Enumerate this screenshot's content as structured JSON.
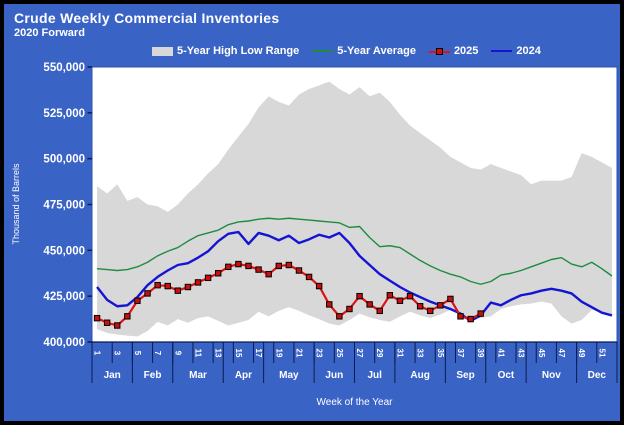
{
  "window": {
    "title": "Crude Weekly Commercial Inventories",
    "subtitle": "2020 Forward"
  },
  "chart_data": {
    "type": "line",
    "title": "Crude Weekly Commercial Inventories",
    "subtitle": "2020 Forward",
    "xlabel": "Week of the Year",
    "ylabel": "Thousand of Barrels",
    "ylim": [
      400000,
      550000
    ],
    "y_ticks": [
      400000,
      425000,
      450000,
      475000,
      500000,
      525000,
      550000
    ],
    "x_tick_weeks": [
      1,
      3,
      5,
      7,
      9,
      11,
      13,
      15,
      17,
      19,
      21,
      23,
      25,
      27,
      29,
      31,
      33,
      35,
      37,
      39,
      41,
      43,
      45,
      47,
      49,
      51
    ],
    "x_weeks_total": 52,
    "grid": false,
    "legend_position": "top",
    "legend": [
      {
        "label": "5-Year High Low Range",
        "type": "band",
        "color": "#D8D8D8"
      },
      {
        "label": "5-Year Average",
        "type": "line",
        "color": "#1E8C3E"
      },
      {
        "label": "2025",
        "type": "line-marker",
        "color": "#E01212"
      },
      {
        "label": "2024",
        "type": "line",
        "color": "#1414D2"
      }
    ],
    "months": [
      {
        "label": "Jan",
        "start_week": 1
      },
      {
        "label": "Feb",
        "start_week": 5
      },
      {
        "label": "Mar",
        "start_week": 9
      },
      {
        "label": "Apr",
        "start_week": 14
      },
      {
        "label": "May",
        "start_week": 18
      },
      {
        "label": "Jun",
        "start_week": 23
      },
      {
        "label": "Jul",
        "start_week": 27
      },
      {
        "label": "Aug",
        "start_week": 31
      },
      {
        "label": "Sep",
        "start_week": 36
      },
      {
        "label": "Oct",
        "start_week": 40
      },
      {
        "label": "Nov",
        "start_week": 44
      },
      {
        "label": "Dec",
        "start_week": 49
      }
    ],
    "months_end_week": 53,
    "series": [
      {
        "name": "5-Year High",
        "role": "band-top",
        "color": "#D8D8D8",
        "values": [
          485000,
          481000,
          486000,
          477000,
          479000,
          475000,
          474000,
          471000,
          475000,
          481000,
          486000,
          492000,
          497000,
          505000,
          512000,
          519000,
          528000,
          534000,
          531000,
          529000,
          535000,
          538000,
          540000,
          542000,
          538000,
          535000,
          539000,
          534000,
          536000,
          531000,
          524000,
          518000,
          514000,
          510000,
          506000,
          501000,
          498000,
          495000,
          494000,
          497000,
          495000,
          493000,
          491000,
          486000,
          488000,
          488000,
          488000,
          490000,
          503000,
          501000,
          498000,
          495000
        ]
      },
      {
        "name": "5-Year Low",
        "role": "band-bottom",
        "color": "#D8D8D8",
        "values": [
          407000,
          405000,
          404000,
          403500,
          403000,
          406000,
          411000,
          409000,
          412500,
          410500,
          413000,
          414000,
          411500,
          409000,
          410500,
          412000,
          416500,
          414000,
          417000,
          419000,
          417000,
          414500,
          412500,
          410000,
          409000,
          412000,
          415500,
          413500,
          412000,
          411000,
          414000,
          416500,
          414500,
          413000,
          415000,
          417500,
          415500,
          413500,
          413000,
          414000,
          418000,
          419500,
          420500,
          421000,
          422000,
          421000,
          414000,
          410000,
          412000,
          417500,
          416000,
          415000
        ]
      },
      {
        "name": "5-Year Average",
        "role": "line",
        "color": "#1E8C3E",
        "values": [
          440000,
          439500,
          439000,
          439500,
          441000,
          443500,
          447000,
          449500,
          451500,
          455000,
          458000,
          459500,
          461000,
          464000,
          465500,
          466000,
          467000,
          467500,
          467000,
          467500,
          467000,
          466500,
          466000,
          465500,
          465000,
          462500,
          463000,
          457000,
          452000,
          452500,
          451500,
          448000,
          444500,
          441500,
          439000,
          437000,
          435500,
          433000,
          431500,
          433000,
          436500,
          437500,
          439000,
          441000,
          443000,
          445000,
          446000,
          442500,
          441000,
          443500,
          440000,
          436000
        ]
      },
      {
        "name": "2024",
        "role": "line",
        "color": "#1414D2",
        "values": [
          430000,
          423000,
          419500,
          420000,
          424500,
          431000,
          435500,
          439000,
          442000,
          443000,
          446000,
          449500,
          455000,
          459000,
          460000,
          453500,
          459500,
          458000,
          455500,
          458000,
          454000,
          456000,
          458500,
          457000,
          459500,
          454000,
          447000,
          442000,
          437000,
          433500,
          430000,
          427000,
          424500,
          422000,
          420000,
          418000,
          415500,
          411500,
          414500,
          421500,
          420000,
          423000,
          425500,
          426500,
          428000,
          429000,
          428000,
          426500,
          422000,
          419000,
          416000,
          414500
        ]
      },
      {
        "name": "2025",
        "role": "line-marker",
        "color": "#E01212",
        "values": [
          413000,
          410500,
          409000,
          414000,
          422500,
          426500,
          431000,
          430500,
          428000,
          430000,
          432500,
          435000,
          437500,
          441000,
          442500,
          441500,
          439500,
          437000,
          441500,
          442000,
          439000,
          435500,
          430500,
          420500,
          414000,
          418000,
          425000,
          420500,
          417000,
          425500,
          422500,
          425000,
          419500,
          417000,
          420000,
          423500,
          414000,
          412500,
          415500
        ]
      }
    ]
  },
  "colors": {
    "background": "#3A63C6",
    "frame_border": "#000000",
    "plot_background": "#FFFFFF",
    "plot_border": "#2C51B0",
    "axis": "#0A1C50",
    "text": "#FFFFFF",
    "band": "#D8D8D8",
    "avg_line": "#1E8C3E",
    "line_2024": "#1414D2",
    "line_2025": "#E01212",
    "marker_fill": "#C81010",
    "marker_stroke": "#000000"
  }
}
